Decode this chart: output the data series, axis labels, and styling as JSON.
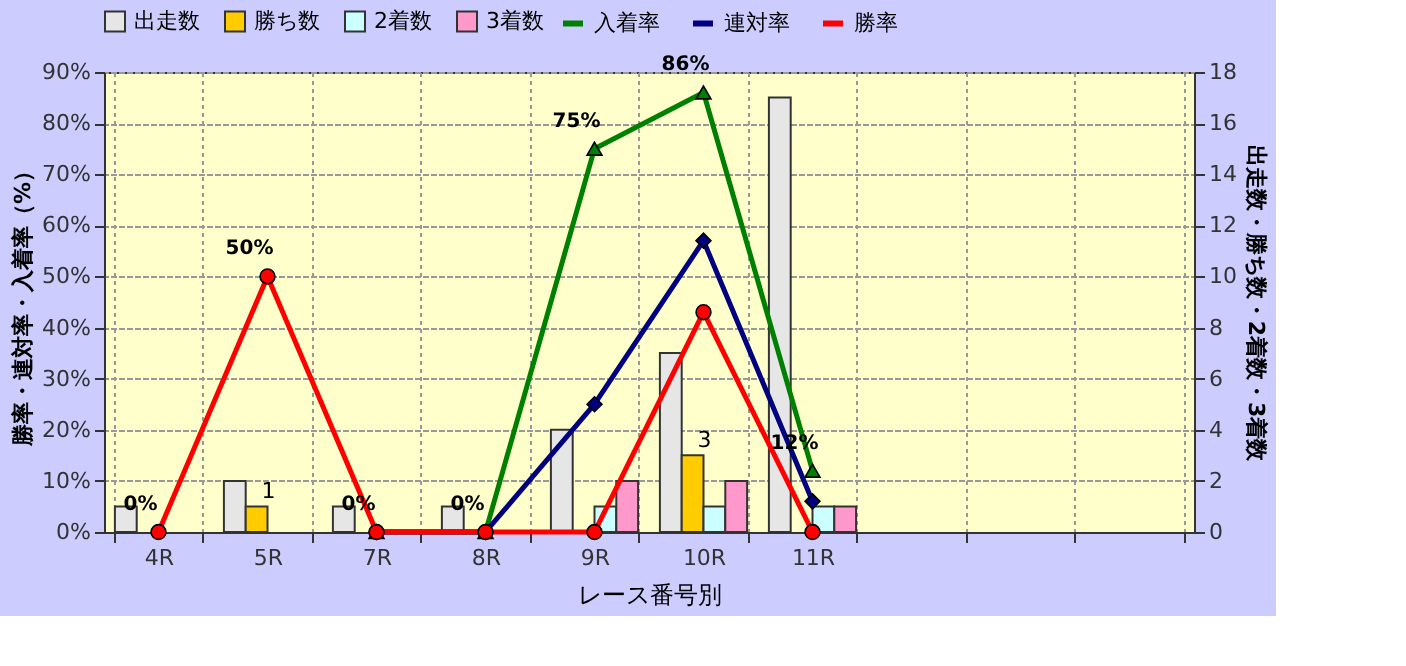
{
  "chart_data": {
    "type": "bar",
    "xlabel": "レース番号別",
    "ylabel": "勝率・連対率・入着率（%）",
    "y2label": "出走数・勝ち数・2着数・3着数",
    "categories": [
      "4R",
      "5R",
      "7R",
      "8R",
      "9R",
      "10R",
      "11R",
      null,
      null,
      null
    ],
    "series": [
      {
        "name": "出走数",
        "axis": "y2",
        "color": "#e6e6e6",
        "values": [
          1,
          2,
          1,
          1,
          4,
          7,
          17,
          null,
          null,
          null
        ]
      },
      {
        "name": "勝ち数",
        "axis": "y2",
        "color": "#ffcc00",
        "values": [
          0,
          1,
          0,
          0,
          0,
          3,
          0,
          null,
          null,
          null
        ],
        "value_labels": [
          null,
          "1",
          null,
          null,
          null,
          "3",
          null,
          null,
          null,
          null
        ]
      },
      {
        "name": "2着数",
        "axis": "y2",
        "color": "#ccffff",
        "values": [
          0,
          0,
          0,
          0,
          1,
          1,
          1,
          null,
          null,
          null
        ]
      },
      {
        "name": "3着数",
        "axis": "y2",
        "color": "#ff99cc",
        "values": [
          0,
          0,
          0,
          0,
          2,
          2,
          1,
          null,
          null,
          null
        ]
      },
      {
        "name": "入着率",
        "type": "line",
        "color": "#008000",
        "marker": "triangle",
        "values": [
          null,
          null,
          0,
          0,
          75,
          86,
          12,
          null,
          null,
          null
        ],
        "value_labels": [
          null,
          null,
          "0%",
          "0%",
          "75%",
          "86%",
          "12%",
          null,
          null,
          null
        ]
      },
      {
        "name": "連対率",
        "type": "line",
        "color": "#000080",
        "marker": "diamond",
        "values": [
          null,
          null,
          0,
          0,
          25,
          57,
          6,
          null,
          null,
          null
        ]
      },
      {
        "name": "勝率",
        "type": "line",
        "color": "#ff0000",
        "marker": "circle",
        "values": [
          0,
          50,
          0,
          0,
          0,
          43,
          0,
          null,
          null,
          null
        ],
        "value_labels": [
          "0%",
          "50%",
          null,
          null,
          null,
          null,
          null,
          null,
          null,
          null
        ]
      }
    ],
    "ylim": [
      0,
      90
    ],
    "yticks": [
      {
        "value": 0,
        "label": "0%"
      },
      {
        "value": 10,
        "label": "10%"
      },
      {
        "value": 20,
        "label": "20%"
      },
      {
        "value": 30,
        "label": "30%"
      },
      {
        "value": 40,
        "label": "40%"
      },
      {
        "value": 50,
        "label": "50%"
      },
      {
        "value": 60,
        "label": "60%"
      },
      {
        "value": 70,
        "label": "70%"
      },
      {
        "value": 80,
        "label": "80%"
      },
      {
        "value": 90,
        "label": "90%"
      }
    ],
    "y2lim": [
      0,
      18
    ],
    "y2ticks": [
      0,
      2,
      4,
      6,
      8,
      10,
      12,
      14,
      16,
      18
    ],
    "grid": true,
    "legend": "top"
  }
}
